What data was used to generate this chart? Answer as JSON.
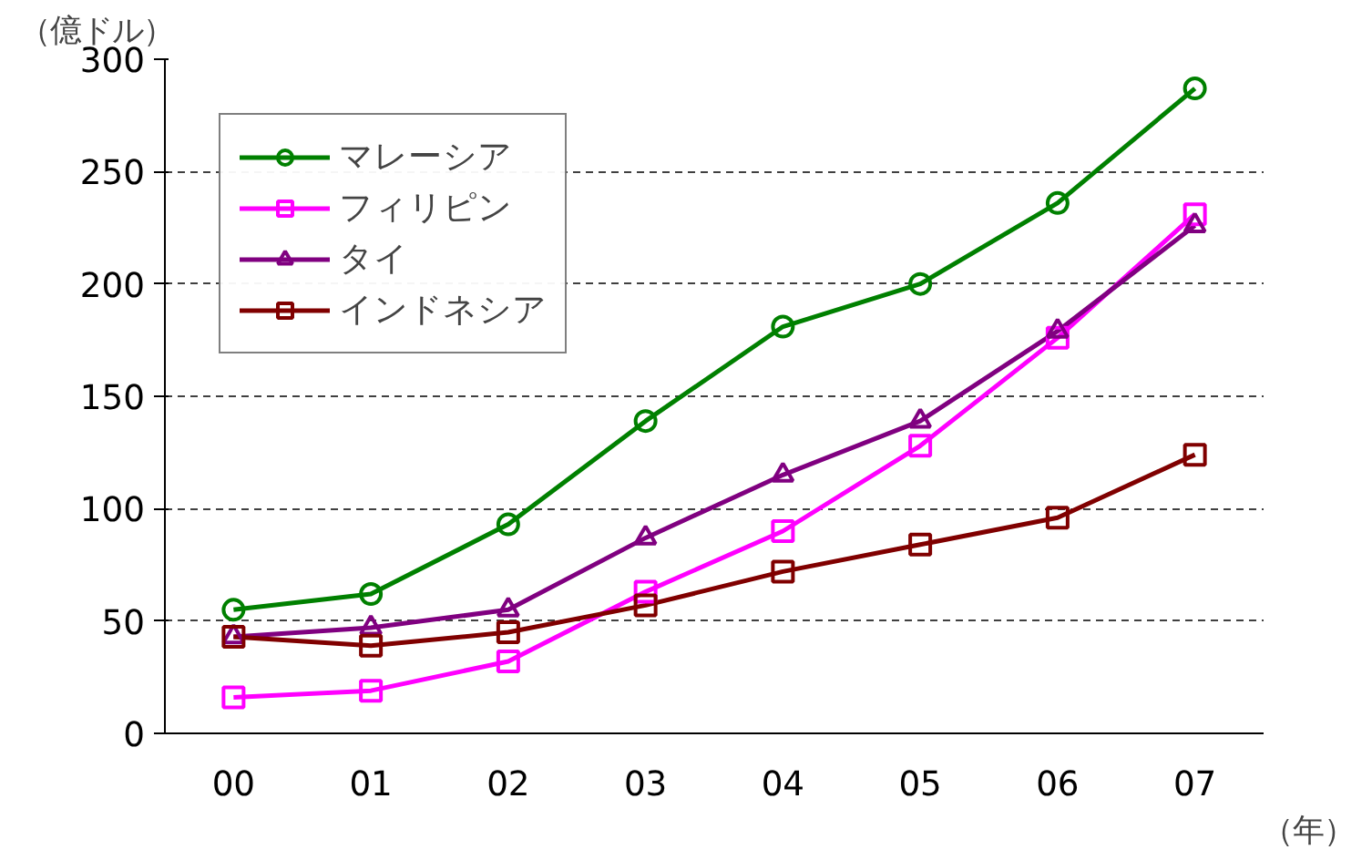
{
  "chart_data": {
    "type": "line",
    "ylabel": "（億ドル）",
    "xlabel": "（年）",
    "categories": [
      "00",
      "01",
      "02",
      "03",
      "04",
      "05",
      "06",
      "07"
    ],
    "ylim": [
      0,
      300
    ],
    "yticks": [
      0,
      50,
      100,
      150,
      200,
      250,
      300
    ],
    "grid": "y",
    "legend": "top left",
    "series": [
      {
        "name": "マレーシア",
        "color": "#008000",
        "marker": "circle",
        "values": [
          55,
          62,
          93,
          139,
          181,
          200,
          236,
          287
        ]
      },
      {
        "name": "フィリピン",
        "color": "#ff00ff",
        "marker": "square",
        "values": [
          16,
          19,
          32,
          63,
          90,
          128,
          176,
          231
        ]
      },
      {
        "name": "タイ",
        "color": "#800080",
        "marker": "triangle",
        "values": [
          43,
          47,
          55,
          87,
          115,
          139,
          179,
          226
        ]
      },
      {
        "name": "インドネシア",
        "color": "#800000",
        "marker": "square",
        "values": [
          43,
          39,
          45,
          57,
          72,
          84,
          96,
          124
        ]
      }
    ]
  }
}
